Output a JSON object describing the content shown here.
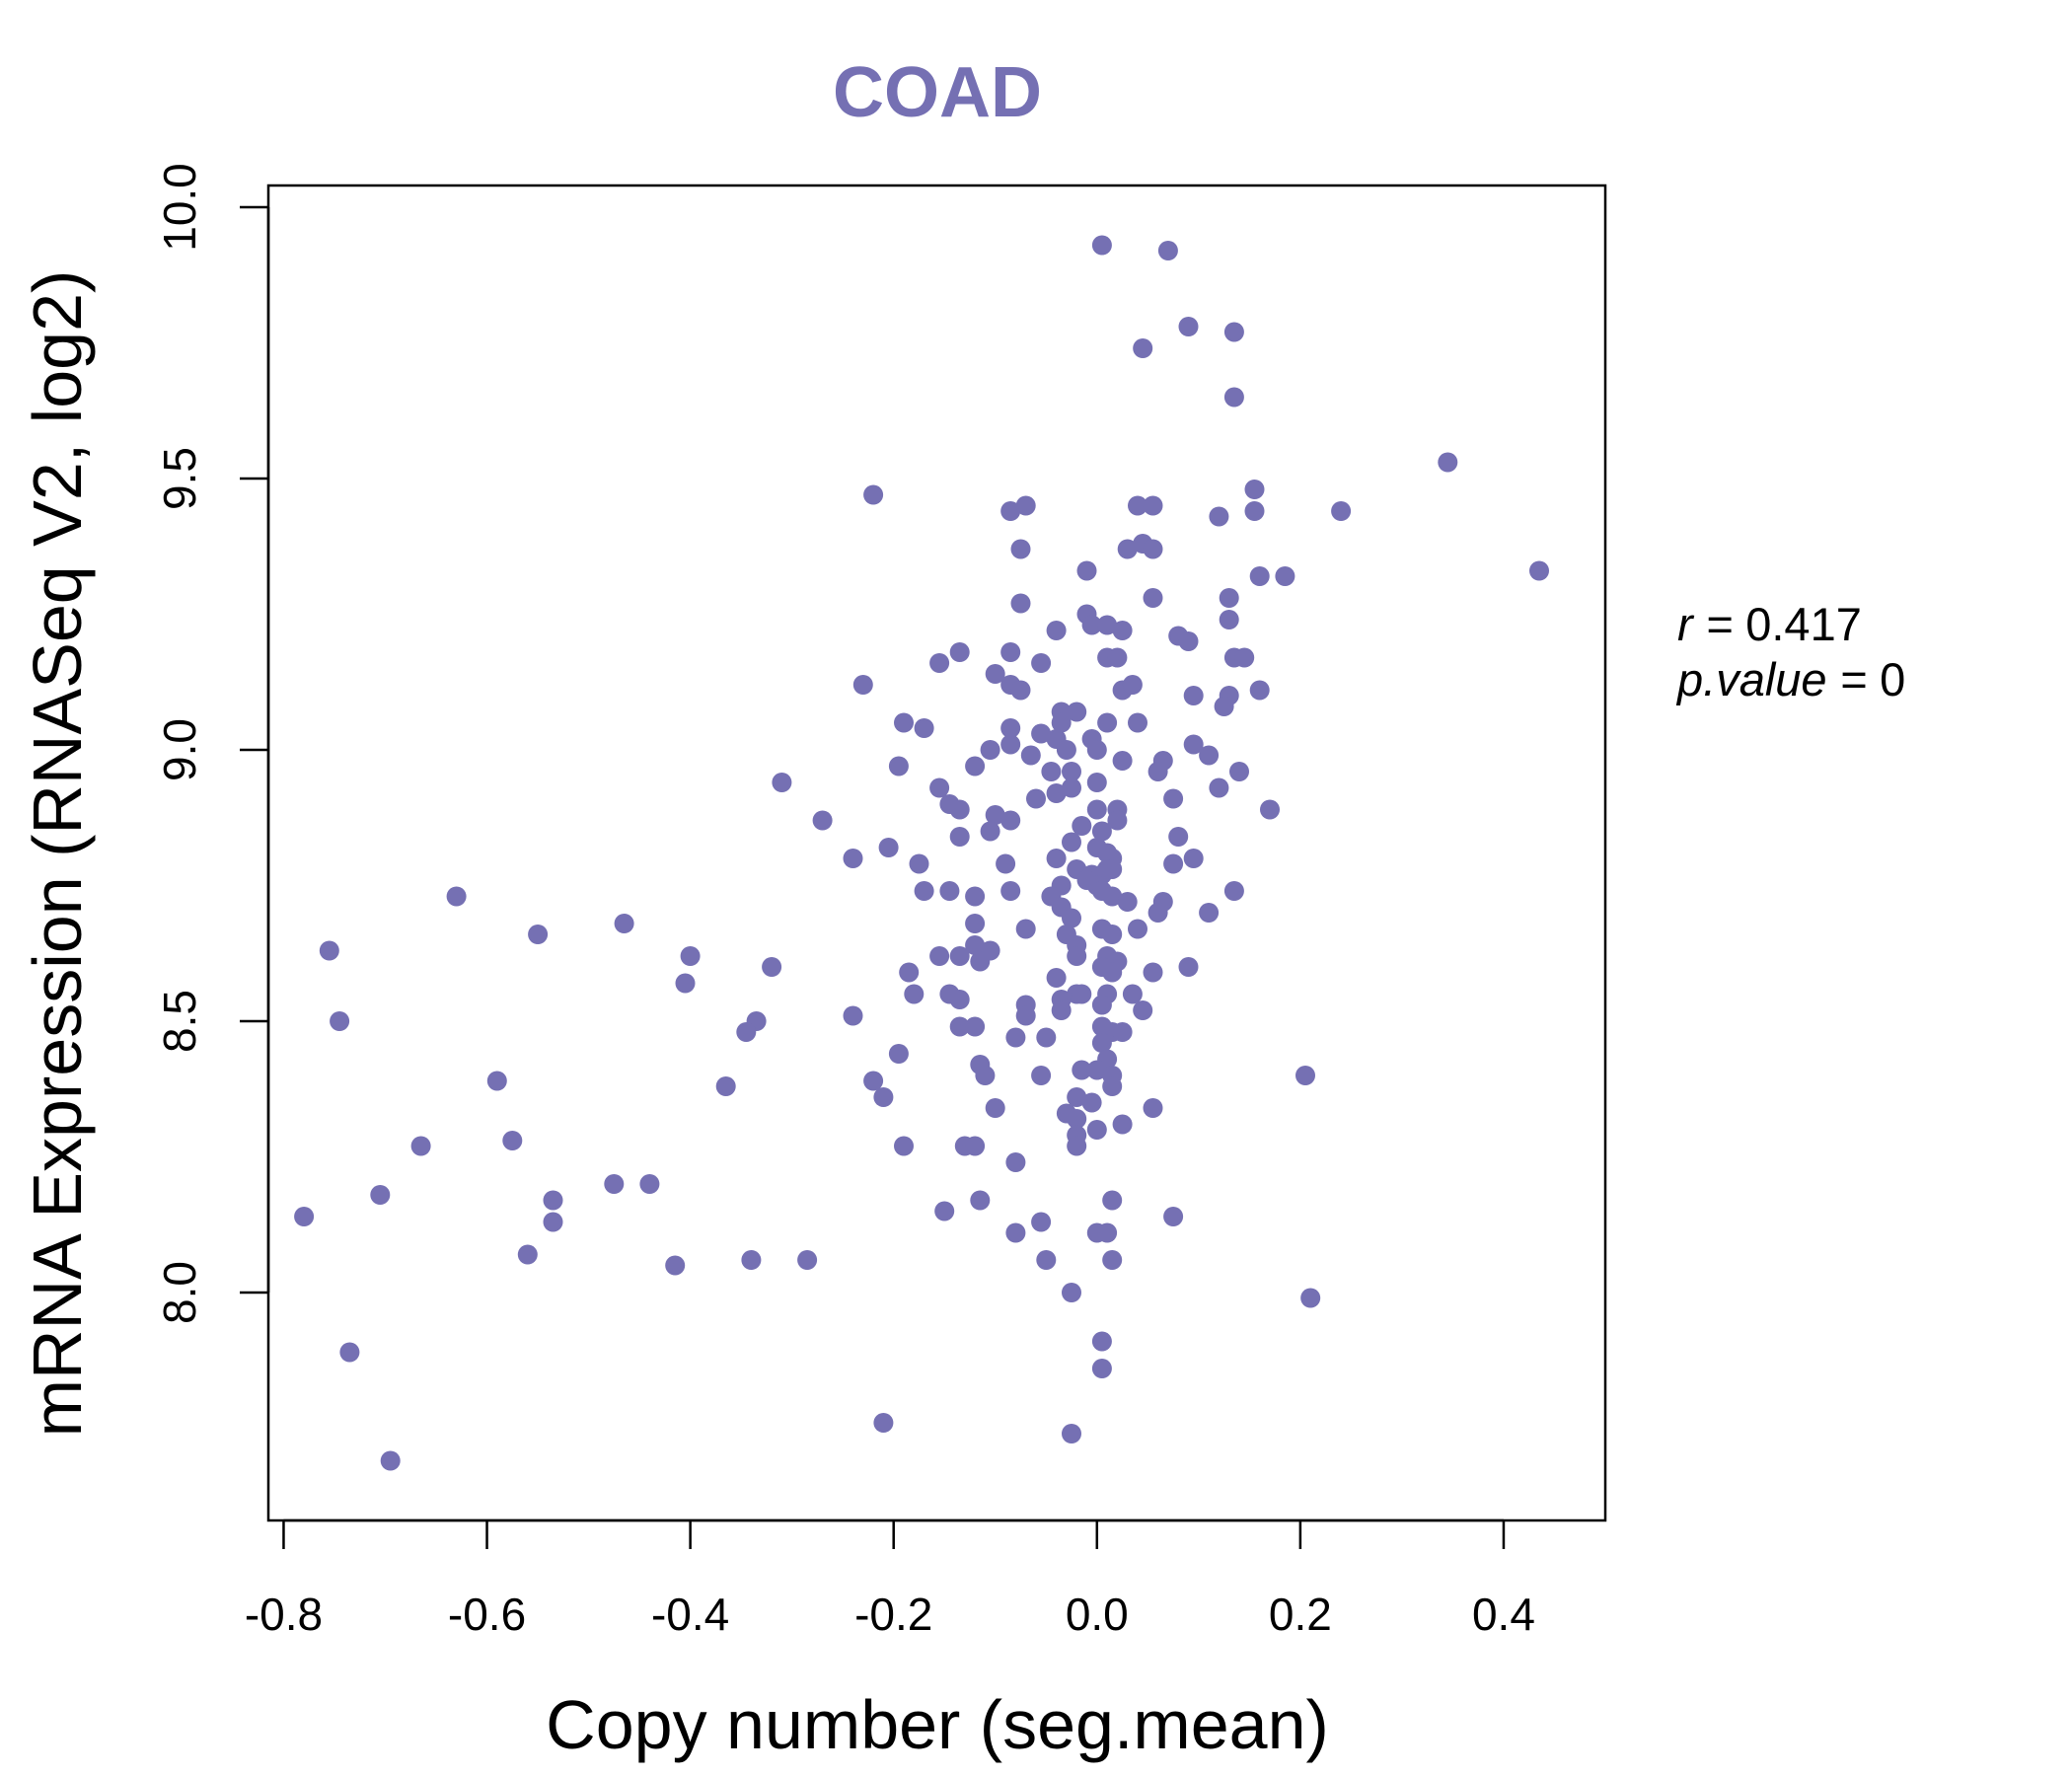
{
  "colors": {
    "point": "#7570b3",
    "title": "#7570b3",
    "axis": "#000000"
  },
  "stats": {
    "r_label": "r",
    "r_value": "0.417",
    "p_label": "p.value",
    "p_value": "0"
  },
  "chart_data": {
    "type": "scatter",
    "title": "COAD",
    "xlabel": "Copy number (seg.mean)",
    "ylabel": "mRNA Expression (RNASeq V2, log2)",
    "xlim": [
      -0.815,
      0.5
    ],
    "ylim": [
      7.58,
      10.04
    ],
    "xticks": [
      -0.8,
      -0.6,
      -0.4,
      -0.2,
      0.0,
      0.2,
      0.4
    ],
    "xtick_labels": [
      "-0.8",
      "-0.6",
      "-0.4",
      "-0.2",
      "0.0",
      "0.2",
      "0.4"
    ],
    "yticks": [
      8.0,
      8.5,
      9.0,
      9.5,
      10.0
    ],
    "ytick_labels": [
      "8.0",
      "8.5",
      "9.0",
      "9.5",
      "10.0"
    ],
    "grid": false,
    "points": [
      [
        0.005,
        9.93
      ],
      [
        0.07,
        9.92
      ],
      [
        0.09,
        9.78
      ],
      [
        0.135,
        9.77
      ],
      [
        0.045,
        9.74
      ],
      [
        0.135,
        9.65
      ],
      [
        0.345,
        9.53
      ],
      [
        0.435,
        9.33
      ],
      [
        0.24,
        9.44
      ],
      [
        0.155,
        9.48
      ],
      [
        0.155,
        9.44
      ],
      [
        0.12,
        9.43
      ],
      [
        0.04,
        9.45
      ],
      [
        0.055,
        9.45
      ],
      [
        0.03,
        9.37
      ],
      [
        0.045,
        9.38
      ],
      [
        0.055,
        9.37
      ],
      [
        0.185,
        9.32
      ],
      [
        0.16,
        9.32
      ],
      [
        0.055,
        9.28
      ],
      [
        0.13,
        9.28
      ],
      [
        0.13,
        9.24
      ],
      [
        -0.22,
        9.47
      ],
      [
        -0.085,
        9.44
      ],
      [
        -0.07,
        9.45
      ],
      [
        -0.075,
        9.37
      ],
      [
        -0.01,
        9.33
      ],
      [
        -0.075,
        9.27
      ],
      [
        -0.01,
        9.25
      ],
      [
        -0.005,
        9.23
      ],
      [
        0.01,
        9.23
      ],
      [
        0.025,
        9.22
      ],
      [
        -0.04,
        9.22
      ],
      [
        0.08,
        9.21
      ],
      [
        0.09,
        9.2
      ],
      [
        0.01,
        9.17
      ],
      [
        0.02,
        9.17
      ],
      [
        0.135,
        9.17
      ],
      [
        0.145,
        9.17
      ],
      [
        -0.055,
        9.16
      ],
      [
        -0.085,
        9.18
      ],
      [
        -0.135,
        9.18
      ],
      [
        -0.155,
        9.16
      ],
      [
        -0.1,
        9.14
      ],
      [
        -0.085,
        9.12
      ],
      [
        -0.075,
        9.11
      ],
      [
        0.025,
        9.11
      ],
      [
        0.035,
        9.12
      ],
      [
        0.16,
        9.11
      ],
      [
        0.13,
        9.1
      ],
      [
        0.095,
        9.1
      ],
      [
        0.125,
        9.08
      ],
      [
        -0.23,
        9.12
      ],
      [
        -0.035,
        9.07
      ],
      [
        -0.02,
        9.07
      ],
      [
        -0.035,
        9.05
      ],
      [
        0.01,
        9.05
      ],
      [
        0.04,
        9.05
      ],
      [
        -0.19,
        9.05
      ],
      [
        -0.17,
        9.04
      ],
      [
        -0.085,
        9.04
      ],
      [
        -0.055,
        9.03
      ],
      [
        -0.04,
        9.02
      ],
      [
        -0.005,
        9.02
      ],
      [
        -0.085,
        9.01
      ],
      [
        0.095,
        9.01
      ],
      [
        -0.105,
        9.0
      ],
      [
        -0.065,
        8.99
      ],
      [
        -0.03,
        9.0
      ],
      [
        0.0,
        9.0
      ],
      [
        0.065,
        8.98
      ],
      [
        0.11,
        8.99
      ],
      [
        -0.12,
        8.97
      ],
      [
        -0.195,
        8.97
      ],
      [
        -0.045,
        8.96
      ],
      [
        -0.025,
        8.96
      ],
      [
        0.025,
        8.98
      ],
      [
        0.06,
        8.96
      ],
      [
        0.14,
        8.96
      ],
      [
        -0.31,
        8.94
      ],
      [
        -0.025,
        8.93
      ],
      [
        0.0,
        8.94
      ],
      [
        0.12,
        8.93
      ],
      [
        -0.155,
        8.93
      ],
      [
        -0.145,
        8.9
      ],
      [
        -0.04,
        8.92
      ],
      [
        -0.06,
        8.91
      ],
      [
        0.075,
        8.91
      ],
      [
        0.0,
        8.89
      ],
      [
        0.02,
        8.89
      ],
      [
        0.17,
        8.89
      ],
      [
        -0.135,
        8.89
      ],
      [
        -0.1,
        8.88
      ],
      [
        -0.085,
        8.87
      ],
      [
        0.02,
        8.87
      ],
      [
        -0.27,
        8.87
      ],
      [
        -0.015,
        8.86
      ],
      [
        0.005,
        8.85
      ],
      [
        -0.105,
        8.85
      ],
      [
        -0.135,
        8.84
      ],
      [
        0.08,
        8.84
      ],
      [
        -0.025,
        8.83
      ],
      [
        0.0,
        8.82
      ],
      [
        -0.205,
        8.82
      ],
      [
        0.01,
        8.81
      ],
      [
        -0.04,
        8.8
      ],
      [
        0.095,
        8.8
      ],
      [
        0.015,
        8.8
      ],
      [
        -0.24,
        8.8
      ],
      [
        -0.175,
        8.79
      ],
      [
        -0.09,
        8.79
      ],
      [
        0.075,
        8.79
      ],
      [
        -0.02,
        8.78
      ],
      [
        -0.005,
        8.77
      ],
      [
        0.005,
        8.77
      ],
      [
        0.01,
        8.78
      ],
      [
        0.015,
        8.78
      ],
      [
        -0.01,
        8.76
      ],
      [
        0.0,
        8.75
      ],
      [
        -0.035,
        8.75
      ],
      [
        0.005,
        8.74
      ],
      [
        -0.17,
        8.74
      ],
      [
        -0.145,
        8.74
      ],
      [
        -0.085,
        8.74
      ],
      [
        0.135,
        8.74
      ],
      [
        -0.045,
        8.73
      ],
      [
        0.015,
        8.73
      ],
      [
        -0.12,
        8.73
      ],
      [
        0.03,
        8.72
      ],
      [
        0.065,
        8.72
      ],
      [
        -0.035,
        8.71
      ],
      [
        0.06,
        8.7
      ],
      [
        0.11,
        8.7
      ],
      [
        -0.63,
        8.73
      ],
      [
        -0.465,
        8.68
      ],
      [
        -0.025,
        8.69
      ],
      [
        -0.12,
        8.68
      ],
      [
        -0.07,
        8.67
      ],
      [
        0.04,
        8.67
      ],
      [
        0.005,
        8.67
      ],
      [
        -0.03,
        8.66
      ],
      [
        0.015,
        8.66
      ],
      [
        -0.55,
        8.66
      ],
      [
        -0.755,
        8.63
      ],
      [
        -0.4,
        8.62
      ],
      [
        -0.32,
        8.6
      ],
      [
        -0.12,
        8.64
      ],
      [
        -0.105,
        8.63
      ],
      [
        -0.02,
        8.64
      ],
      [
        -0.155,
        8.62
      ],
      [
        -0.135,
        8.62
      ],
      [
        -0.115,
        8.61
      ],
      [
        0.01,
        8.62
      ],
      [
        0.02,
        8.61
      ],
      [
        -0.02,
        8.62
      ],
      [
        0.005,
        8.6
      ],
      [
        0.015,
        8.59
      ],
      [
        -0.185,
        8.59
      ],
      [
        0.055,
        8.59
      ],
      [
        0.09,
        8.6
      ],
      [
        -0.405,
        8.57
      ],
      [
        -0.04,
        8.58
      ],
      [
        -0.02,
        8.55
      ],
      [
        -0.015,
        8.55
      ],
      [
        0.01,
        8.55
      ],
      [
        0.035,
        8.55
      ],
      [
        0.005,
        8.53
      ],
      [
        -0.18,
        8.55
      ],
      [
        -0.145,
        8.55
      ],
      [
        -0.135,
        8.54
      ],
      [
        -0.07,
        8.53
      ],
      [
        -0.035,
        8.54
      ],
      [
        -0.035,
        8.52
      ],
      [
        -0.07,
        8.51
      ],
      [
        0.045,
        8.52
      ],
      [
        -0.24,
        8.51
      ],
      [
        -0.335,
        8.5
      ],
      [
        -0.745,
        8.5
      ],
      [
        -0.345,
        8.48
      ],
      [
        -0.135,
        8.49
      ],
      [
        -0.12,
        8.49
      ],
      [
        0.005,
        8.49
      ],
      [
        0.015,
        8.48
      ],
      [
        0.025,
        8.48
      ],
      [
        -0.08,
        8.47
      ],
      [
        -0.05,
        8.47
      ],
      [
        0.005,
        8.46
      ],
      [
        -0.195,
        8.44
      ],
      [
        0.01,
        8.43
      ],
      [
        -0.015,
        8.41
      ],
      [
        0.0,
        8.41
      ],
      [
        0.015,
        8.4
      ],
      [
        -0.115,
        8.42
      ],
      [
        -0.11,
        8.4
      ],
      [
        -0.055,
        8.4
      ],
      [
        0.205,
        8.4
      ],
      [
        -0.59,
        8.39
      ],
      [
        -0.365,
        8.38
      ],
      [
        -0.22,
        8.39
      ],
      [
        0.015,
        8.38
      ],
      [
        -0.21,
        8.36
      ],
      [
        -0.02,
        8.36
      ],
      [
        -0.005,
        8.35
      ],
      [
        -0.1,
        8.34
      ],
      [
        0.055,
        8.34
      ],
      [
        -0.03,
        8.33
      ],
      [
        -0.02,
        8.32
      ],
      [
        0.025,
        8.31
      ],
      [
        0.0,
        8.3
      ],
      [
        -0.02,
        8.29
      ],
      [
        -0.02,
        8.27
      ],
      [
        -0.575,
        8.28
      ],
      [
        -0.665,
        8.27
      ],
      [
        -0.19,
        8.27
      ],
      [
        -0.13,
        8.27
      ],
      [
        -0.12,
        8.27
      ],
      [
        -0.08,
        8.24
      ],
      [
        -0.475,
        8.2
      ],
      [
        -0.44,
        8.2
      ],
      [
        -0.705,
        8.18
      ],
      [
        -0.535,
        8.17
      ],
      [
        -0.115,
        8.17
      ],
      [
        0.015,
        8.17
      ],
      [
        -0.78,
        8.14
      ],
      [
        -0.15,
        8.15
      ],
      [
        0.075,
        8.14
      ],
      [
        -0.535,
        8.13
      ],
      [
        -0.055,
        8.13
      ],
      [
        -0.08,
        8.11
      ],
      [
        0.0,
        8.11
      ],
      [
        0.01,
        8.11
      ],
      [
        -0.56,
        8.07
      ],
      [
        -0.34,
        8.06
      ],
      [
        -0.285,
        8.06
      ],
      [
        -0.05,
        8.06
      ],
      [
        0.015,
        8.06
      ],
      [
        -0.415,
        8.05
      ],
      [
        -0.025,
        8.0
      ],
      [
        0.21,
        7.99
      ],
      [
        0.005,
        7.91
      ],
      [
        -0.735,
        7.89
      ],
      [
        0.005,
        7.86
      ],
      [
        -0.21,
        7.76
      ],
      [
        -0.025,
        7.74
      ],
      [
        -0.695,
        7.69
      ]
    ]
  }
}
